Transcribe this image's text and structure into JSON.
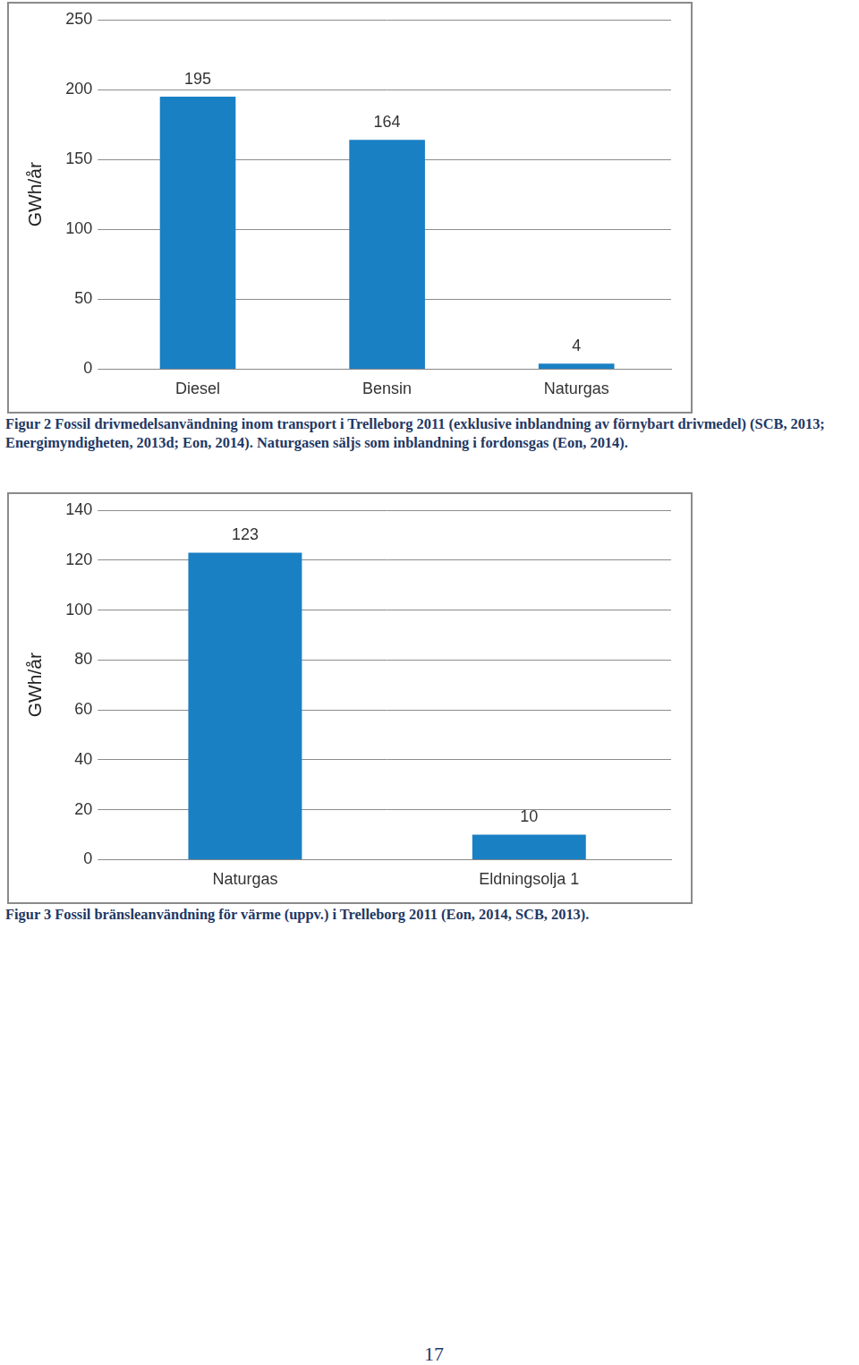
{
  "chart_data": [
    {
      "type": "bar",
      "title": "Figur 2 Fossil drivmedelsanvändning inom transport i Trelleborg 2011 (exklusive inblandning av förnybart drivmedel) (SCB, 2013; Energimyndigheten, 2013d; Eon, 2014). Naturgasen säljs som inblandning i fordonsgas (Eon, 2014).",
      "categories": [
        "Diesel",
        "Bensin",
        "Naturgas"
      ],
      "values": [
        195,
        164,
        4
      ],
      "ylabel": "GWh/år",
      "color": "#1a80c4",
      "ylim": [
        0,
        250
      ],
      "yticks": [
        0,
        50,
        100,
        150,
        200,
        250
      ],
      "grid": true,
      "data_labels": true
    },
    {
      "type": "bar",
      "title": "Figur 3 Fossil bränsleanvändning för värme (uppv.) i Trelleborg 2011 (Eon, 2014, SCB, 2013).",
      "categories": [
        "Naturgas",
        "Eldningsolja 1"
      ],
      "values": [
        123,
        10
      ],
      "ylabel": "GWh/år",
      "color": "#1a80c4",
      "ylim": [
        0,
        140
      ],
      "yticks": [
        0,
        20,
        40,
        60,
        80,
        100,
        120,
        140
      ],
      "grid": true,
      "data_labels": true
    }
  ],
  "page_number": 17
}
